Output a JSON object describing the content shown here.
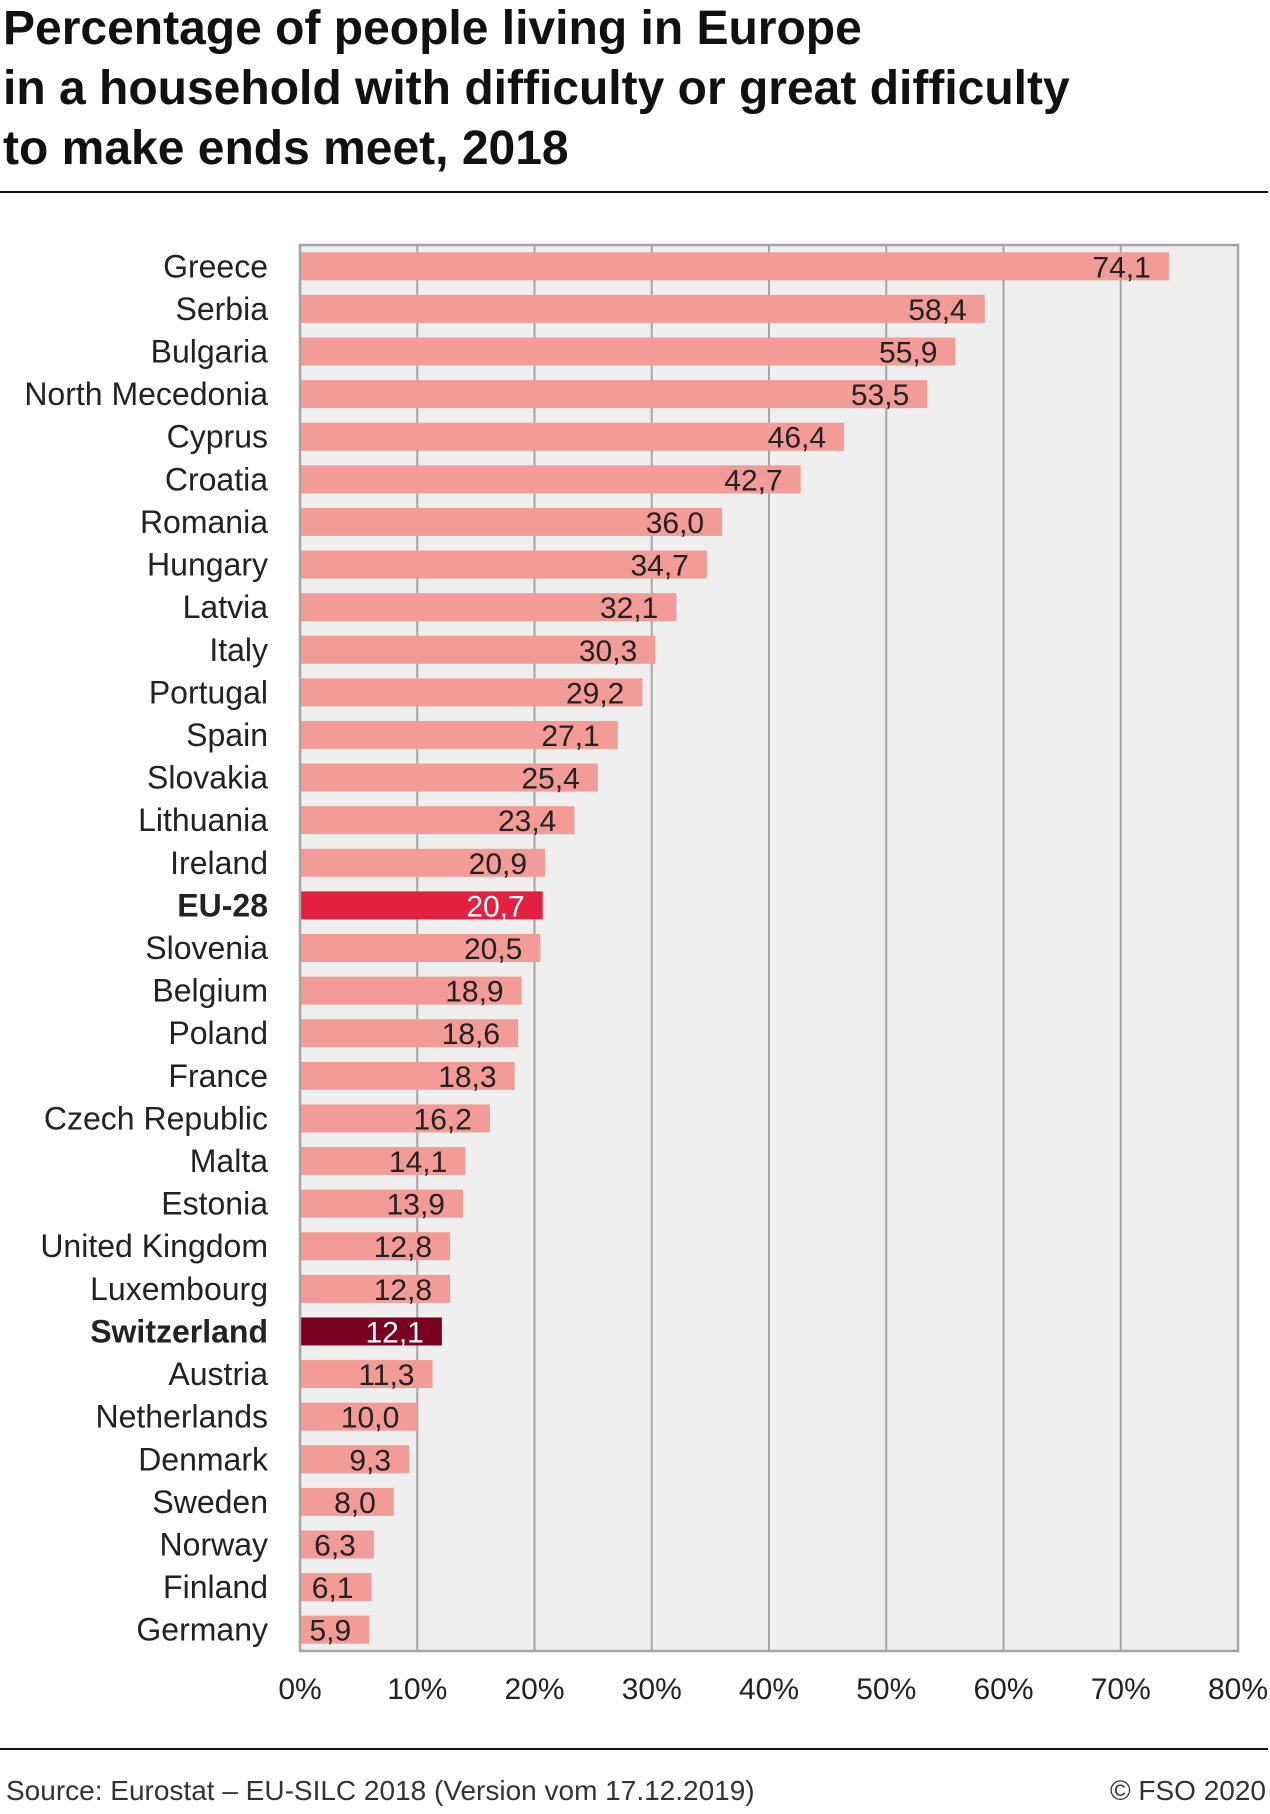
{
  "chart_data": {
    "type": "bar",
    "orientation": "horizontal",
    "title_lines": [
      "Percentage of people living in Europe",
      "in a household with difficulty or great difficulty",
      "to make ends meet, 2018"
    ],
    "categories": [
      "Greece",
      "Serbia",
      "Bulgaria",
      "North Mecedonia",
      "Cyprus",
      "Croatia",
      "Romania",
      "Hungary",
      "Latvia",
      "Italy",
      "Portugal",
      "Spain",
      "Slovakia",
      "Lithuania",
      "Ireland",
      "EU-28",
      "Slovenia",
      "Belgium",
      "Poland",
      "France",
      "Czech Republic",
      "Malta",
      "Estonia",
      "United Kingdom",
      "Luxembourg",
      "Switzerland",
      "Austria",
      "Netherlands",
      "Denmark",
      "Sweden",
      "Norway",
      "Finland",
      "Germany"
    ],
    "values": [
      74.1,
      58.4,
      55.9,
      53.5,
      46.4,
      42.7,
      36.0,
      34.7,
      32.1,
      30.3,
      29.2,
      27.1,
      25.4,
      23.4,
      20.9,
      20.7,
      20.5,
      18.9,
      18.6,
      18.3,
      16.2,
      14.1,
      13.9,
      12.8,
      12.8,
      12.1,
      11.3,
      10.0,
      9.3,
      8.0,
      6.3,
      6.1,
      5.9
    ],
    "value_labels": [
      "74,1",
      "58,4",
      "55,9",
      "53,5",
      "46,4",
      "42,7",
      "36,0",
      "34,7",
      "32,1",
      "30,3",
      "29,2",
      "27,1",
      "25,4",
      "23,4",
      "20,9",
      "20,7",
      "20,5",
      "18,9",
      "18,6",
      "18,3",
      "16,2",
      "14,1",
      "13,9",
      "12,8",
      "12,8",
      "12,1",
      "11,3",
      "10,0",
      "9,3",
      "8,0",
      "6,3",
      "6,1",
      "5,9"
    ],
    "xlim": [
      0,
      80
    ],
    "x_ticks": [
      0,
      10,
      20,
      30,
      40,
      50,
      60,
      70,
      80
    ],
    "x_tick_labels": [
      "0%",
      "10%",
      "20%",
      "30%",
      "40%",
      "50%",
      "60%",
      "70%",
      "80%"
    ],
    "grid": true,
    "bar_color": "#f29b97",
    "label_color": "#222222",
    "highlights": [
      {
        "category": "EU-28",
        "color": "#e3203f",
        "label_color": "#ffffff"
      },
      {
        "category": "Switzerland",
        "color": "#7a0022",
        "label_color": "#ffffff"
      }
    ],
    "plot_background": "#efefef",
    "grid_color": "#a5a5a5"
  },
  "footer": {
    "source": "Source: Eurostat – EU-SILC 2018 (Version vom 17.12.2019)",
    "copyright": "© FSO 2020"
  }
}
